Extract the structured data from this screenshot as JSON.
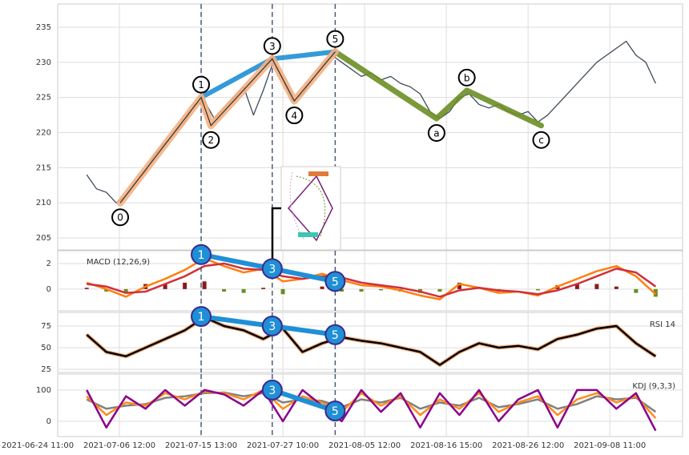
{
  "chart_data": [
    {
      "type": "line",
      "xlim": [
        24.5,
        789
      ],
      "ylim": [
        203.3,
        238.3
      ],
      "yticks": [
        205,
        210,
        215,
        220,
        225,
        230,
        235
      ],
      "grid": true,
      "x": [
        60,
        72,
        84,
        96,
        108,
        120,
        132,
        144,
        156,
        168,
        180,
        192,
        204,
        216,
        228,
        240,
        252,
        264,
        276,
        288,
        300,
        312,
        324,
        336,
        348,
        360,
        372,
        384,
        396,
        408,
        420,
        432,
        444,
        456,
        468,
        480,
        492,
        504,
        516,
        528,
        540,
        552,
        564,
        576,
        588,
        600,
        612,
        624,
        636,
        648,
        660,
        672,
        684,
        696,
        708,
        720,
        732,
        744,
        756
      ],
      "series": [
        {
          "color": "#3d4a5c",
          "values": [
            214,
            212,
            211.5,
            210,
            211,
            213,
            214.5,
            217,
            218.5,
            220,
            221.5,
            224,
            224.5,
            222,
            223.5,
            225,
            226.5,
            222.5,
            226,
            230,
            227.5,
            224.5,
            225.5,
            227.5,
            229.5,
            231,
            230,
            229,
            228,
            228.5,
            227.5,
            228,
            227,
            226.5,
            225.5,
            223,
            222,
            223,
            225,
            225.5,
            224,
            223.5,
            224,
            223,
            222.5,
            223,
            221.5,
            222.5,
            224,
            225.5,
            227,
            228.5,
            230,
            231,
            232,
            233,
            231,
            230,
            227
          ]
        }
      ],
      "vlines": [
        200,
        287,
        364
      ],
      "waves": [
        {
          "color": "#6b8e23",
          "width": 7,
          "labels": [
            null,
            "a",
            "b",
            "c"
          ],
          "x": [
            364,
            488,
            525,
            616
          ],
          "y": [
            231.5,
            222,
            226,
            221
          ]
        },
        {
          "color": "#1f8fd6",
          "width": 6,
          "x": [
            200,
            287,
            364
          ],
          "y": [
            225,
            230.5,
            231.5
          ]
        },
        {
          "color": "#f4b183",
          "width": 9,
          "line_color": "#333333",
          "labels": [
            "0",
            "1",
            "2",
            "3",
            "4",
            "5"
          ],
          "x": [
            101,
            200,
            212,
            287,
            314,
            364
          ],
          "y": [
            210,
            225,
            221,
            230.5,
            224.5,
            231.5
          ]
        }
      ]
    },
    {
      "type": "line",
      "label": "MACD (12,26,9)",
      "xlim": [
        24.5,
        789
      ],
      "ylim": [
        -1.7,
        3
      ],
      "yticks": [
        0,
        2
      ],
      "grid": true,
      "x": [
        60,
        84,
        108,
        132,
        156,
        180,
        204,
        228,
        252,
        276,
        300,
        324,
        348,
        372,
        396,
        420,
        444,
        468,
        492,
        516,
        540,
        564,
        588,
        612,
        636,
        660,
        684,
        708,
        732,
        756
      ],
      "series": [
        {
          "type": "bar",
          "pos_color": "#8b1a1a",
          "neg_color": "#6b8e23",
          "values": [
            0.1,
            -0.2,
            -0.3,
            0.4,
            0.4,
            0.5,
            0.6,
            -0.2,
            -0.3,
            0.1,
            -0.4,
            0,
            0.2,
            -0.2,
            -0.2,
            -0.1,
            -0.2,
            -0.3,
            -0.2,
            0.5,
            0,
            -0.2,
            0,
            -0.1,
            0.3,
            0.4,
            0.4,
            0.2,
            -0.3,
            -0.6
          ]
        },
        {
          "type": "line",
          "color": "#ff7f0e",
          "values": [
            0.5,
            0,
            -0.6,
            0.2,
            0.8,
            1.5,
            2.4,
            1.8,
            1.3,
            1.6,
            0.6,
            0.8,
            1.2,
            0.7,
            0.3,
            0.2,
            -0.1,
            -0.5,
            -0.8,
            0.4,
            0.1,
            -0.3,
            -0.2,
            -0.5,
            0.2,
            0.8,
            1.4,
            1.8,
            1.0,
            -0.4
          ]
        },
        {
          "type": "line",
          "color": "#d0303a",
          "values": [
            0.4,
            0.2,
            -0.3,
            -0.2,
            0.4,
            1.0,
            1.8,
            2.0,
            1.6,
            1.5,
            1.0,
            0.8,
            1.0,
            0.9,
            0.5,
            0.3,
            0.1,
            -0.2,
            -0.6,
            -0.1,
            0.1,
            -0.1,
            -0.2,
            -0.4,
            -0.1,
            0.4,
            1.0,
            1.6,
            1.3,
            0.2
          ]
        }
      ],
      "pivots": {
        "color": "#1f8fd6",
        "labels": [
          "1",
          "3",
          "5"
        ],
        "x": [
          200,
          287,
          364
        ],
        "y": [
          2.7,
          1.6,
          0.6
        ]
      }
    },
    {
      "type": "line",
      "label": "RSI 14",
      "xlim": [
        24.5,
        789
      ],
      "ylim": [
        21.3,
        90.7
      ],
      "yticks": [
        25,
        50,
        75
      ],
      "grid": true,
      "x": [
        60,
        84,
        108,
        132,
        156,
        180,
        204,
        228,
        252,
        276,
        300,
        324,
        348,
        372,
        396,
        420,
        444,
        468,
        492,
        516,
        540,
        564,
        588,
        612,
        636,
        660,
        684,
        708,
        732,
        756
      ],
      "series": [
        {
          "type": "line",
          "color": "#000000",
          "outline": "#f4b183",
          "values": [
            65,
            45,
            40,
            50,
            60,
            70,
            85,
            75,
            70,
            60,
            72,
            45,
            55,
            62,
            58,
            55,
            50,
            45,
            30,
            45,
            55,
            50,
            52,
            48,
            60,
            65,
            72,
            75,
            55,
            40
          ]
        }
      ],
      "pivots": {
        "color": "#1f8fd6",
        "labels": [
          "1",
          "3",
          "5"
        ],
        "x": [
          200,
          287,
          364
        ],
        "y": [
          86,
          75,
          65
        ]
      }
    },
    {
      "type": "line",
      "label": "KDJ (9,3,3)",
      "xlim": [
        24.5,
        789
      ],
      "ylim": [
        -49,
        151
      ],
      "yticks": [
        0,
        100
      ],
      "grid": true,
      "x": [
        60,
        84,
        108,
        132,
        156,
        180,
        204,
        228,
        252,
        276,
        300,
        324,
        348,
        372,
        396,
        420,
        444,
        468,
        492,
        516,
        540,
        564,
        588,
        612,
        636,
        660,
        684,
        708,
        732,
        756
      ],
      "series": [
        {
          "type": "line",
          "color": "#808080",
          "values": [
            70,
            40,
            50,
            55,
            75,
            80,
            90,
            92,
            80,
            90,
            60,
            70,
            65,
            45,
            70,
            60,
            75,
            40,
            60,
            50,
            75,
            45,
            55,
            70,
            40,
            55,
            80,
            70,
            75,
            30
          ]
        },
        {
          "type": "line",
          "color": "#ff8c1a",
          "values": [
            80,
            20,
            60,
            50,
            90,
            70,
            95,
            90,
            70,
            100,
            40,
            80,
            60,
            30,
            90,
            50,
            80,
            20,
            70,
            40,
            90,
            30,
            60,
            80,
            20,
            70,
            90,
            60,
            80,
            10
          ]
        },
        {
          "type": "line",
          "color": "#8b008b",
          "values": [
            100,
            -20,
            80,
            40,
            100,
            50,
            100,
            86,
            50,
            100,
            0,
            100,
            50,
            0,
            100,
            30,
            90,
            -20,
            90,
            20,
            100,
            0,
            70,
            100,
            -20,
            100,
            100,
            40,
            90,
            -30
          ]
        }
      ],
      "pivots": {
        "color": "#1f8fd6",
        "labels": [
          "3",
          "5"
        ],
        "x": [
          287,
          364
        ],
        "y": [
          100,
          33
        ]
      },
      "xticks": [
        {
          "value": 0,
          "label": "2021-06-24 11:00"
        },
        {
          "value": 100,
          "label": "2021-07-06 12:00"
        },
        {
          "value": 200,
          "label": "2021-07-15 13:00"
        },
        {
          "value": 300,
          "label": "2021-07-27 10:00"
        },
        {
          "value": 400,
          "label": "2021-08-05 12:00"
        },
        {
          "value": 500,
          "label": "2021-08-16 15:00"
        },
        {
          "value": 600,
          "label": "2021-08-26 12:00"
        },
        {
          "value": 700,
          "label": "2021-09-08 11:00"
        }
      ]
    }
  ]
}
